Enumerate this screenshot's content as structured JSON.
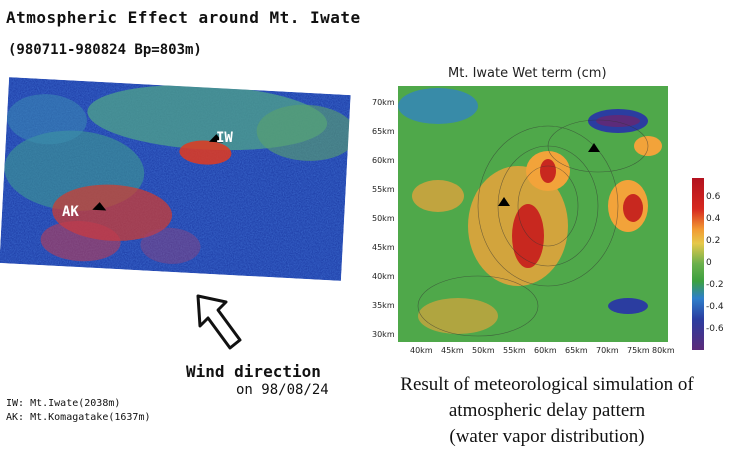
{
  "left_panel": {
    "title": "Atmospheric Effect around Mt. Iwate",
    "subtitle": "(980711-980824 Bp=803m)",
    "markers": {
      "iw": "IW",
      "ak": "AK"
    },
    "wind_direction": "Wind direction",
    "wind_date": "on 98/08/24",
    "legend": [
      "IW: Mt.Iwate(2038m)",
      "AK: Mt.Komagatake(1637m)"
    ]
  },
  "right_panel": {
    "title": "Mt. Iwate Wet term (cm)",
    "y_ticks": [
      "70km",
      "65km",
      "60km",
      "55km",
      "50km",
      "45km",
      "40km",
      "35km",
      "30km"
    ],
    "x_ticks": [
      "40km",
      "45km",
      "50km",
      "55km",
      "60km",
      "65km",
      "70km",
      "75km",
      "80km"
    ],
    "colorbar_ticks": [
      "0.6",
      "0.4",
      "0.2",
      "0",
      "-0.2",
      "-0.4",
      "-0.6"
    ],
    "caption": [
      "Result of meteorological simulation of",
      "atmospheric delay pattern",
      "(water vapor distribution)"
    ]
  }
}
